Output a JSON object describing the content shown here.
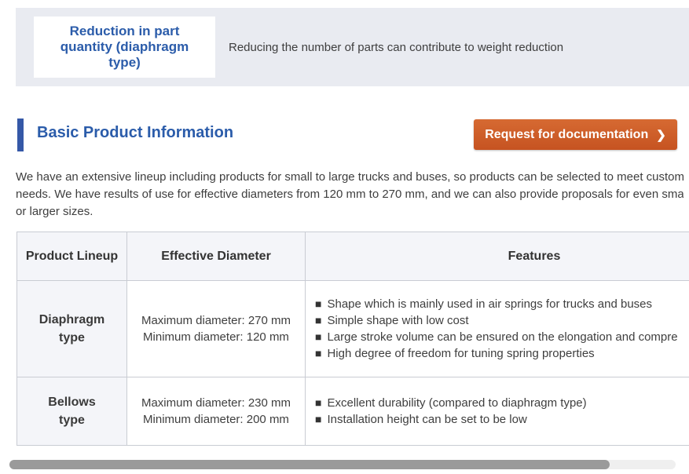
{
  "hero": {
    "title_lines": [
      "Reduction in part",
      "quantity (diaphragm",
      "type)"
    ],
    "description": "Reducing the number of parts can contribute to weight reduction"
  },
  "section": {
    "heading": "Basic Product Information",
    "button_label": "Request for documentation",
    "button_chevron": "❯",
    "intro_lines": [
      "We have an extensive lineup including products for small to large trucks and buses, so products can be selected to meet customer",
      "needs. We have results of use for effective diameters from 120 mm to 270 mm, and we can also provide proposals for even smaller",
      "or larger sizes."
    ]
  },
  "table": {
    "bullet": "■",
    "headers": [
      "Product Lineup",
      "Effective Diameter",
      "Features"
    ],
    "rows": [
      {
        "product": [
          "Diaphragm",
          "type"
        ],
        "diameters": [
          "Maximum diameter: 270 mm",
          "Minimum diameter: 120 mm"
        ],
        "features": [
          "Shape which is mainly used in air springs for trucks and buses",
          "Simple shape with low cost",
          "Large stroke volume can be ensured on the elongation and compre",
          "High degree of freedom for tuning spring properties"
        ]
      },
      {
        "product": [
          "Bellows",
          "type"
        ],
        "diameters": [
          "Maximum diameter: 230 mm",
          "Minimum diameter: 200 mm"
        ],
        "features": [
          "Excellent durability (compared to diaphragm type)",
          "Installation height can be set to be low"
        ]
      }
    ]
  },
  "colors": {
    "accent_blue": "#2b5caa",
    "band_background": "#e9ebf1",
    "button_orange": "#cd5b28",
    "table_header_bg": "#f4f5f9",
    "border_gray": "#c9ccd3"
  }
}
